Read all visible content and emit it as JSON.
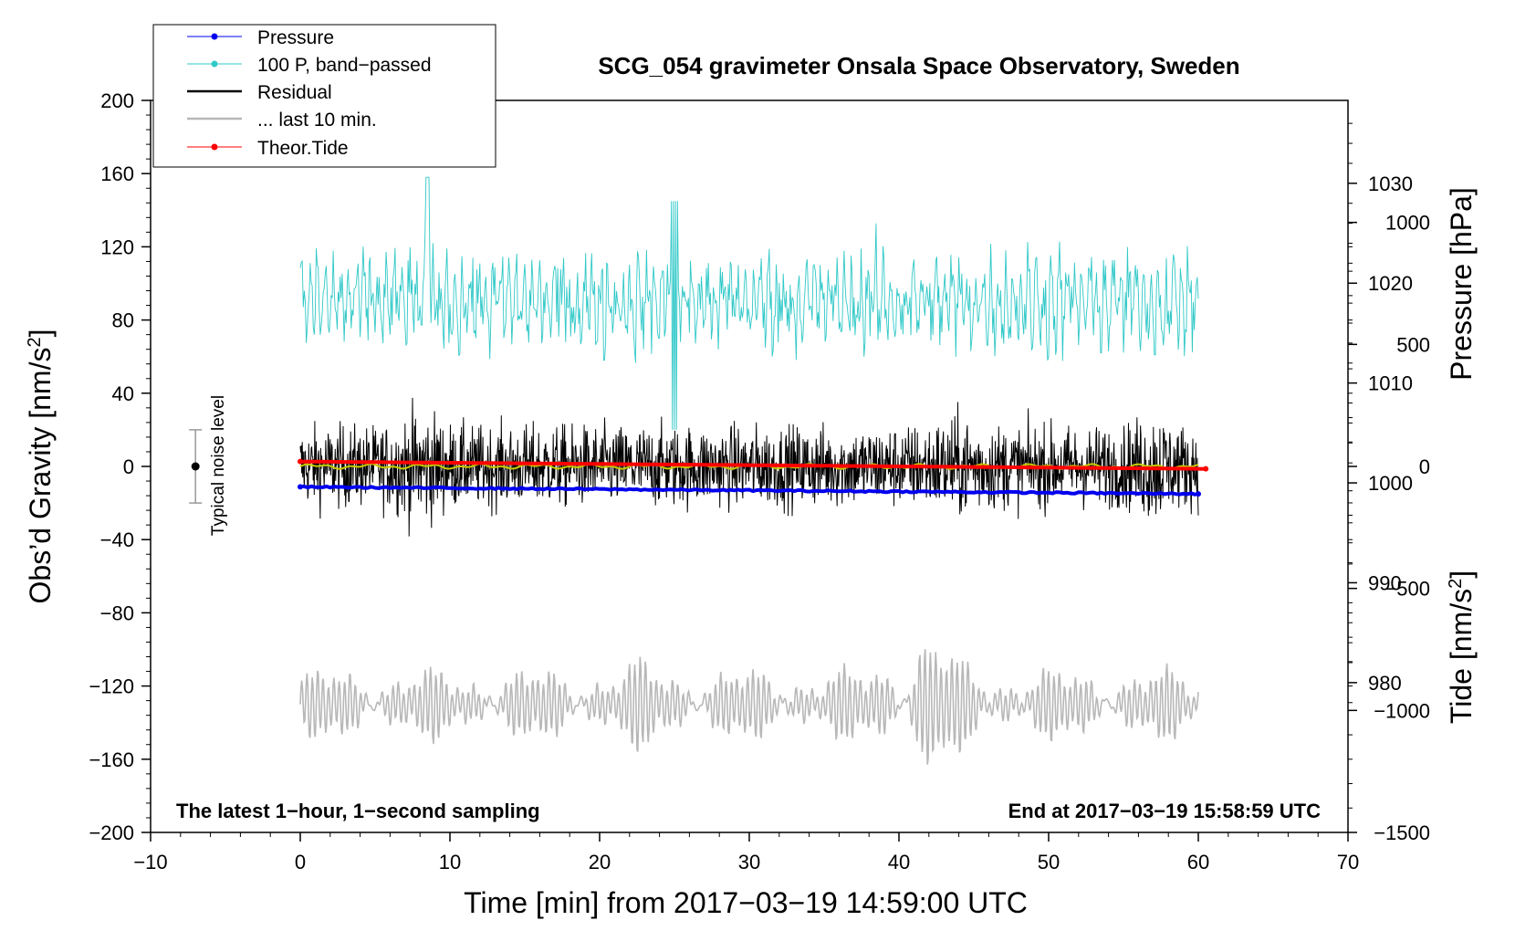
{
  "chart_data": {
    "type": "line",
    "title": "SCG_054 gravimeter Onsala Space Observatory, Sweden",
    "xlabel": "Time [min] from 2017−03−19 14:59:00 UTC",
    "ylabel": "Obs’d Gravity [nm/s",
    "ylabel_sup": "2",
    "ylabel_close": "]",
    "y2label": "Pressure [hPa]",
    "y3label": "Tide [nm/s",
    "y3label_sup": "2",
    "y3label_close": "]",
    "xlim": [
      -10,
      70
    ],
    "ylim": [
      -200,
      200
    ],
    "y2lim": [
      965,
      1038.3
    ],
    "y3lim": [
      -1500,
      1500
    ],
    "x_ticks": [
      -10,
      0,
      10,
      20,
      30,
      40,
      50,
      60,
      70
    ],
    "x_tick_labels": [
      "−10",
      "0",
      "10",
      "20",
      "30",
      "40",
      "50",
      "60",
      "70"
    ],
    "y_ticks": [
      -200,
      -160,
      -120,
      -80,
      -40,
      0,
      40,
      80,
      120,
      160,
      200
    ],
    "y_tick_labels": [
      "−200",
      "−160",
      "−120",
      "−80",
      "−40",
      "0",
      "40",
      "80",
      "120",
      "160",
      "200"
    ],
    "y2_ticks": [
      980,
      990,
      1000,
      1010,
      1020,
      1030
    ],
    "y2_tick_labels": [
      "980",
      "990",
      "1000",
      "1010",
      "1020",
      "1030"
    ],
    "y3_ticks": [
      -1500,
      -1000,
      -500,
      0,
      500,
      1000
    ],
    "y3_tick_labels": [
      "−1500",
      "−1000",
      "−500",
      "0",
      "500",
      "1000"
    ],
    "legend": [
      {
        "label": "Pressure",
        "color": "#0000ee",
        "style": "line-dot"
      },
      {
        "label": "100 P, band−passed",
        "color": "#30c8c8",
        "style": "line-dot"
      },
      {
        "label": "Residual",
        "color": "#000000",
        "style": "line"
      },
      {
        "label": "... last 10 min.",
        "color": "#b8b8b8",
        "style": "line"
      },
      {
        "label": "Theor.Tide",
        "color": "#ff0000",
        "style": "line-dot"
      }
    ],
    "legend_position": "top-left",
    "annotations": {
      "left_bottom": "The latest 1−hour, 1−second sampling",
      "right_bottom": "End at 2017−03−19 15:58:59 UTC",
      "noise": "Typical noise level"
    },
    "noise_bar": {
      "x": -7,
      "center": 0,
      "low": -20,
      "high": 20
    },
    "series": [
      {
        "name": "Pressure",
        "axis": "y2",
        "color": "#0000ee",
        "x_range": [
          0,
          60
        ],
        "values_start": 999.6,
        "values_end": 998.9
      },
      {
        "name": "100 P, band−passed",
        "axis": "y",
        "color": "#30c8c8",
        "x_range": [
          0,
          60
        ],
        "center": 90,
        "typical_range": [
          55,
          125
        ],
        "extremes_range": [
          18,
          158
        ]
      },
      {
        "name": "Residual",
        "axis": "y",
        "color": "#000000",
        "x_range": [
          0,
          60
        ],
        "center": 0,
        "typical_range": [
          -25,
          25
        ],
        "extremes_range": [
          -47,
          45
        ]
      },
      {
        "name": "Residual smoothed",
        "axis": "y",
        "color": "#c8c800",
        "x_range": [
          0,
          60
        ],
        "center": 0
      },
      {
        "name": "... last 10 min.",
        "axis": "y",
        "color": "#b8b8b8",
        "x_range": [
          0,
          60
        ],
        "center": -130,
        "typical_range": [
          -150,
          -108
        ],
        "extremes_range": [
          -168,
          -83
        ]
      },
      {
        "name": "Theor.Tide",
        "axis": "y3",
        "color": "#ff0000",
        "x_range": [
          0,
          60.5
        ],
        "values_start": 20,
        "values_end": -10
      }
    ]
  }
}
